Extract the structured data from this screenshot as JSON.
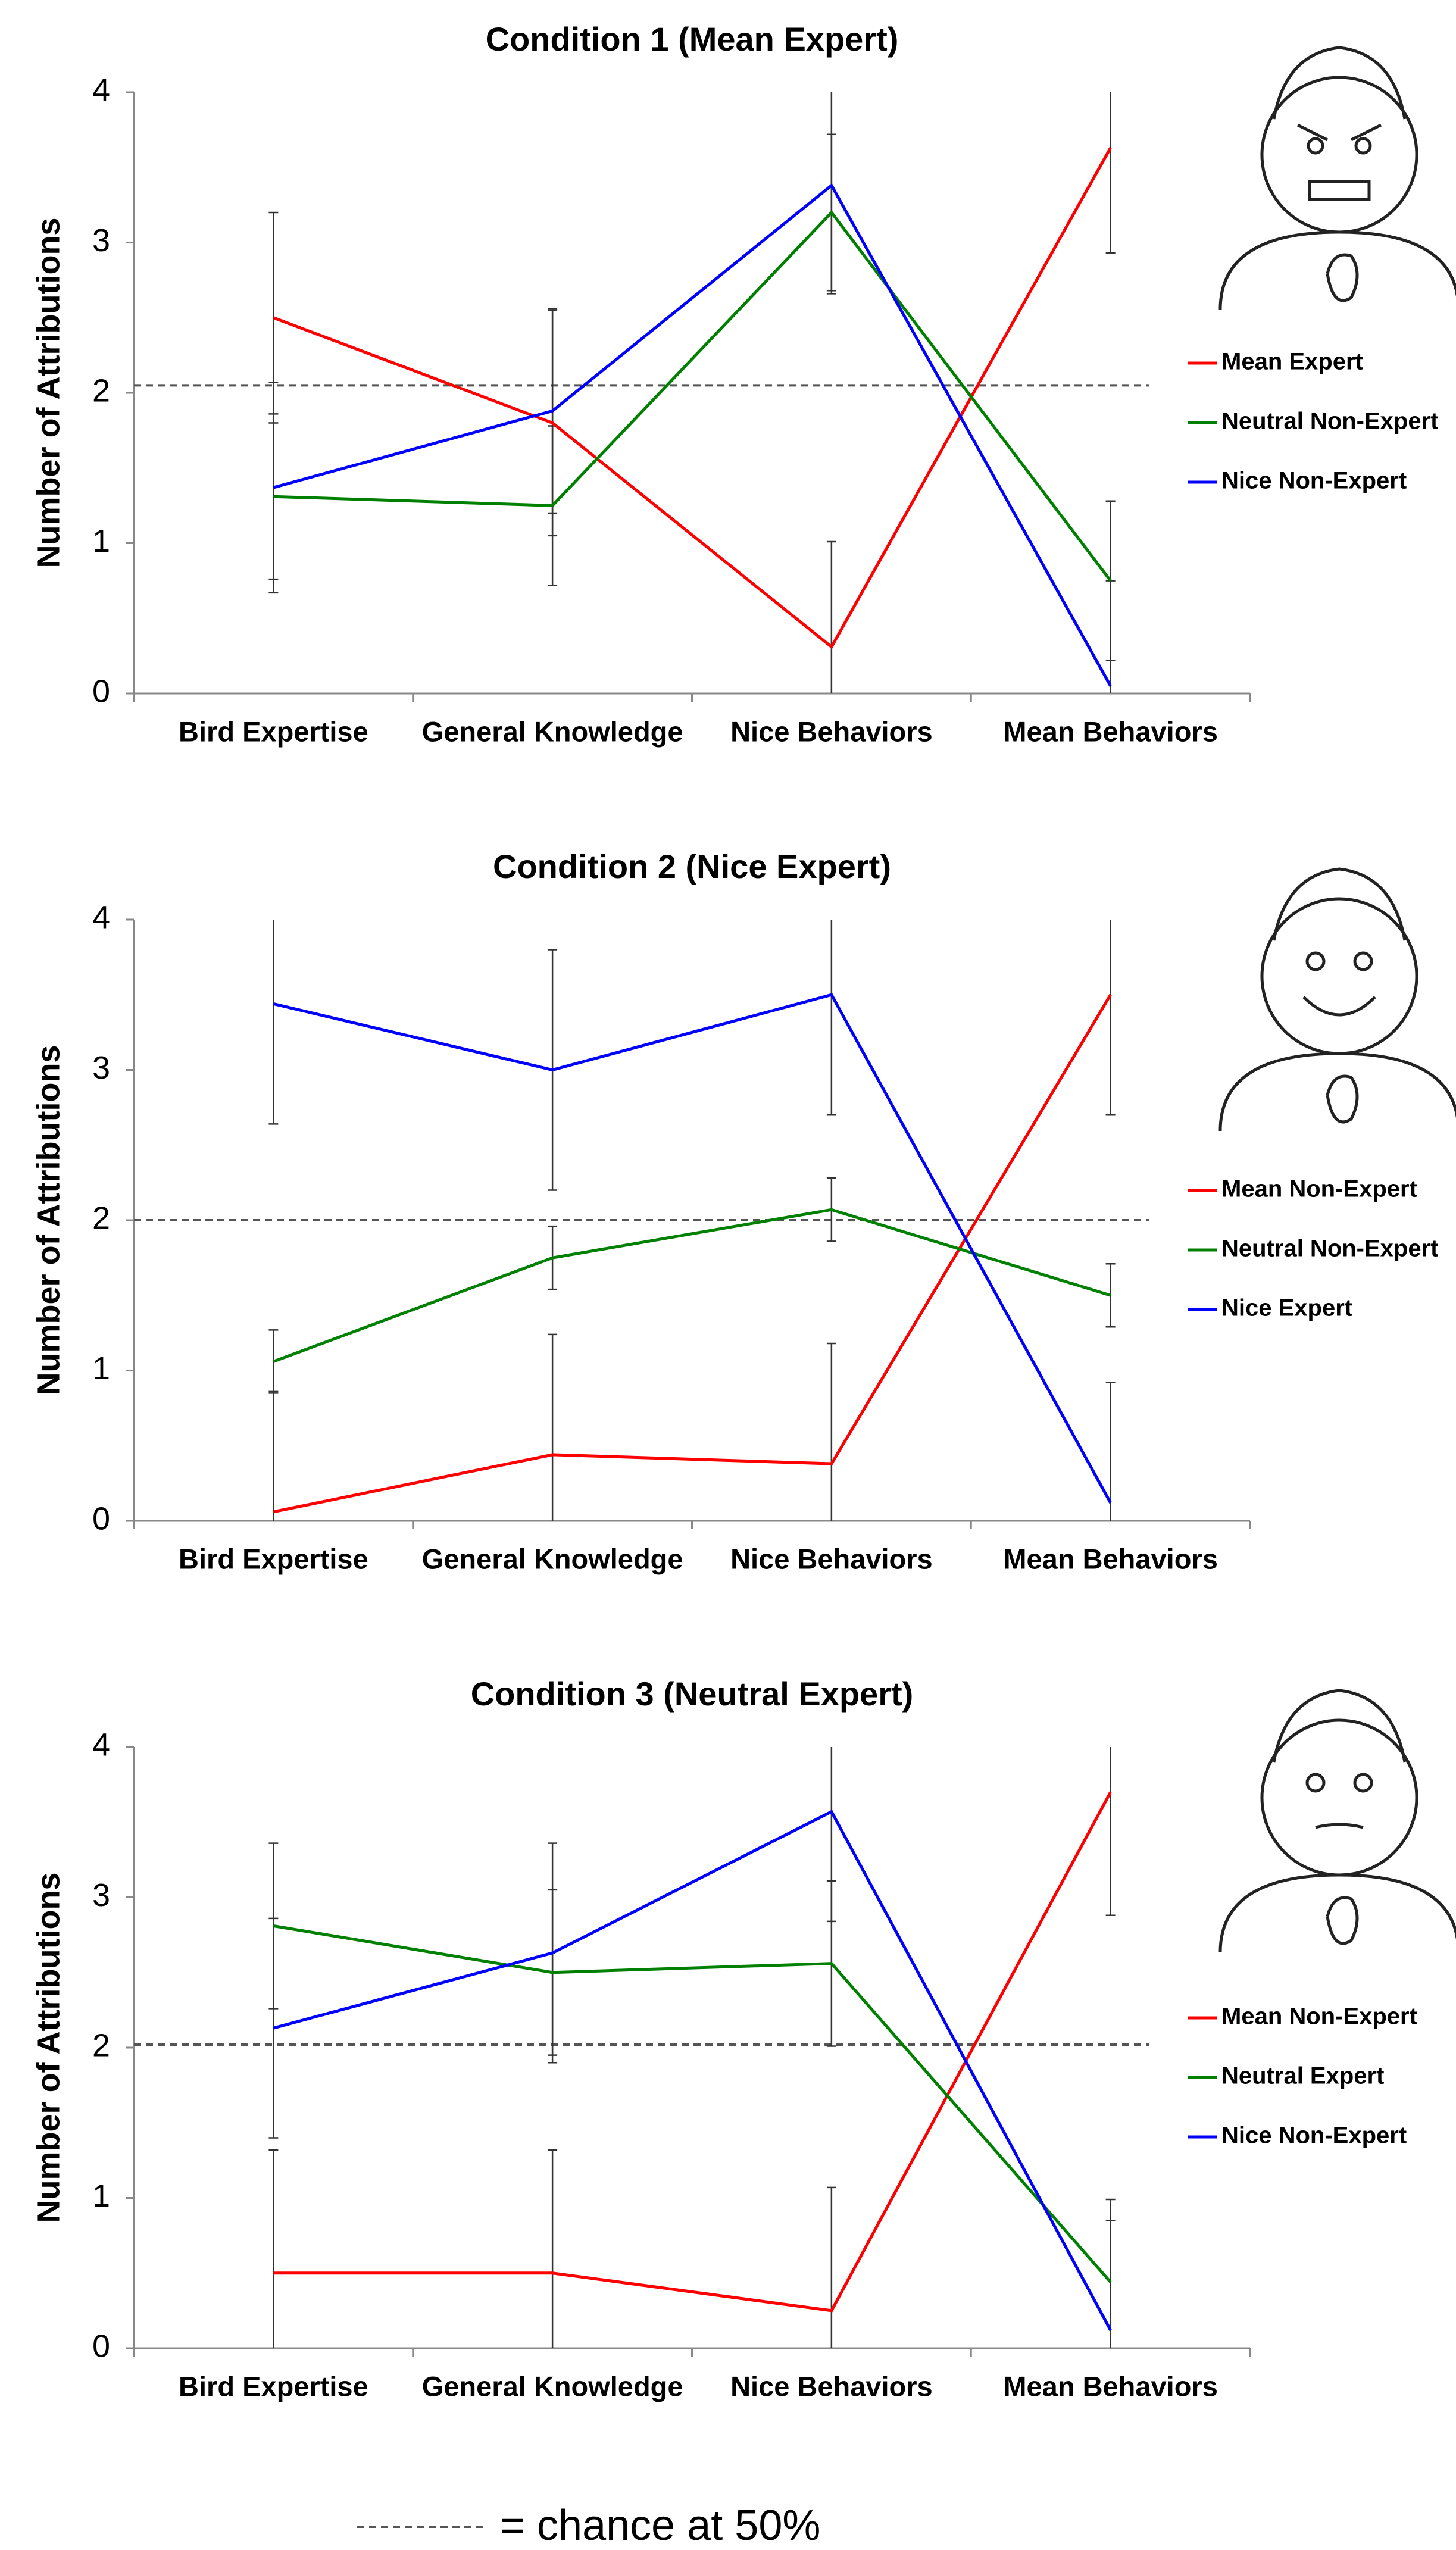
{
  "chart_data": [
    {
      "type": "line",
      "title": "Condition 1 (Mean Expert)",
      "y_label": "Number of Attributions",
      "categories": [
        "Bird Expertise",
        "General Knowledge",
        "Nice Behaviors",
        "Mean Behaviors"
      ],
      "series": [
        {
          "name": "Mean Expert",
          "color": "#ff0000",
          "values": [
            2.5,
            1.8,
            0.31,
            3.63
          ],
          "errors": [
            0.7,
            0.75,
            0.7,
            0.7
          ]
        },
        {
          "name": "Neutral Non-Expert",
          "color": "#008000",
          "values": [
            1.31,
            1.25,
            3.2,
            0.75
          ],
          "errors": [
            0.55,
            0.53,
            0.52,
            0.53
          ]
        },
        {
          "name": "Nice Non-Expert",
          "color": "#0000ff",
          "values": [
            1.37,
            1.88,
            3.38,
            0.05
          ],
          "errors": [
            0.7,
            0.68,
            0.72,
            0.7
          ]
        }
      ],
      "ylim": [
        0,
        4
      ],
      "yticks": [
        0,
        1,
        2,
        3,
        4
      ],
      "chance_line": 2.05
    },
    {
      "type": "line",
      "title": "Condition 2 (Nice Expert)",
      "y_label": "Number of Attributions",
      "categories": [
        "Bird Expertise",
        "General Knowledge",
        "Nice Behaviors",
        "Mean Behaviors"
      ],
      "series": [
        {
          "name": "Mean Non-Expert",
          "color": "#ff0000",
          "values": [
            0.06,
            0.44,
            0.38,
            3.5
          ],
          "errors": [
            0.8,
            0.8,
            0.8,
            0.8
          ]
        },
        {
          "name": "Neutral Non-Expert",
          "color": "#008000",
          "values": [
            1.06,
            1.75,
            2.07,
            1.5
          ],
          "errors": [
            0.21,
            0.21,
            0.21,
            0.21
          ]
        },
        {
          "name": "Nice Expert",
          "color": "#0000ff",
          "values": [
            3.44,
            3.0,
            3.5,
            0.12
          ],
          "errors": [
            0.8,
            0.8,
            0.8,
            0.8
          ]
        }
      ],
      "ylim": [
        0,
        4
      ],
      "yticks": [
        0,
        1,
        2,
        3,
        4
      ],
      "chance_line": 2.0
    },
    {
      "type": "line",
      "title": "Condition 3 (Neutral Expert)",
      "y_label": "Number of Attributions",
      "categories": [
        "Bird Expertise",
        "General Knowledge",
        "Nice Behaviors",
        "Mean Behaviors"
      ],
      "series": [
        {
          "name": "Mean Non-Expert",
          "color": "#ff0000",
          "values": [
            0.5,
            0.5,
            0.25,
            3.7
          ],
          "errors": [
            0.82,
            0.82,
            0.82,
            0.82
          ]
        },
        {
          "name": "Neutral Expert",
          "color": "#008000",
          "values": [
            2.81,
            2.5,
            2.56,
            0.44
          ],
          "errors": [
            0.55,
            0.55,
            0.55,
            0.55
          ]
        },
        {
          "name": "Nice Non-Expert",
          "color": "#0000ff",
          "values": [
            2.13,
            2.63,
            3.57,
            0.12
          ],
          "errors": [
            0.73,
            0.73,
            0.73,
            0.73
          ]
        }
      ],
      "ylim": [
        0,
        4
      ],
      "yticks": [
        0,
        1,
        2,
        3,
        4
      ],
      "chance_line": 2.02
    }
  ],
  "note": "= chance at 50%"
}
